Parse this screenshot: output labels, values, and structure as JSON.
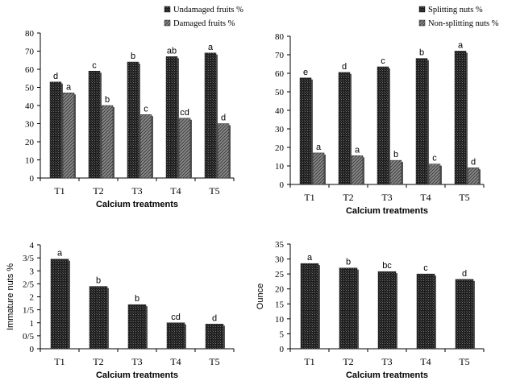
{
  "chart_data": [
    {
      "id": "c1",
      "type": "bar",
      "categories": [
        "T1",
        "T2",
        "T3",
        "T4",
        "T5"
      ],
      "series": [
        {
          "name": "Undamaged fruits %",
          "values": [
            53,
            59,
            64,
            67,
            69
          ],
          "labels": [
            "d",
            "c",
            "b",
            "ab",
            "a"
          ],
          "pattern": "dark"
        },
        {
          "name": "Damaged fruits %",
          "values": [
            47,
            40,
            35,
            33,
            30
          ],
          "labels": [
            "a",
            "b",
            "c",
            "cd",
            "d"
          ],
          "pattern": "light"
        }
      ],
      "xlabel": "Calcium treatments",
      "ylabel": "",
      "ylim": [
        0,
        80
      ],
      "yticks": [
        "0",
        "10",
        "20",
        "30",
        "40",
        "50",
        "60",
        "70",
        "80"
      ],
      "legend_position": "top-right"
    },
    {
      "id": "c2",
      "type": "bar",
      "categories": [
        "T1",
        "T2",
        "T3",
        "T4",
        "T5"
      ],
      "series": [
        {
          "name": "Splitting nuts %",
          "values": [
            57.5,
            60.5,
            63.5,
            68,
            72
          ],
          "labels": [
            "e",
            "d",
            "c",
            "b",
            "a"
          ],
          "pattern": "dark"
        },
        {
          "name": "Non-splitting nuts %",
          "values": [
            17,
            15.5,
            13,
            11,
            9
          ],
          "labels": [
            "a",
            "a",
            "b",
            "c",
            "d"
          ],
          "pattern": "light"
        }
      ],
      "xlabel": "Calcium treatments",
      "ylabel": "",
      "ylim": [
        0,
        80
      ],
      "yticks": [
        "0",
        "10",
        "20",
        "30",
        "40",
        "50",
        "60",
        "70",
        "80"
      ],
      "legend_position": "top-right"
    },
    {
      "id": "c3",
      "type": "bar",
      "categories": [
        "T1",
        "T2",
        "T3",
        "T4",
        "T5"
      ],
      "series": [
        {
          "name": "",
          "values": [
            3.45,
            2.4,
            1.7,
            1.0,
            0.95
          ],
          "labels": [
            "a",
            "b",
            "b",
            "cd",
            "d"
          ],
          "pattern": "dark"
        }
      ],
      "xlabel": "Calcium treatments",
      "ylabel": "Immature nuts %",
      "ylim": [
        0,
        4
      ],
      "yticks": [
        "0",
        "0/5",
        "1",
        "1/5",
        "2",
        "2/5",
        "3",
        "3/5",
        "4"
      ],
      "legend_position": "none"
    },
    {
      "id": "c4",
      "type": "bar",
      "categories": [
        "T1",
        "T2",
        "T3",
        "T4",
        "T5"
      ],
      "series": [
        {
          "name": "",
          "values": [
            28.5,
            27,
            25.8,
            25,
            23.2
          ],
          "labels": [
            "a",
            "b",
            "bc",
            "c",
            "d"
          ],
          "pattern": "dark"
        }
      ],
      "xlabel": "Calcium treatments",
      "ylabel": "Ounce",
      "ylim": [
        0,
        35
      ],
      "yticks": [
        "0",
        "5",
        "10",
        "15",
        "20",
        "25",
        "30",
        "35"
      ],
      "legend_position": "none"
    }
  ]
}
